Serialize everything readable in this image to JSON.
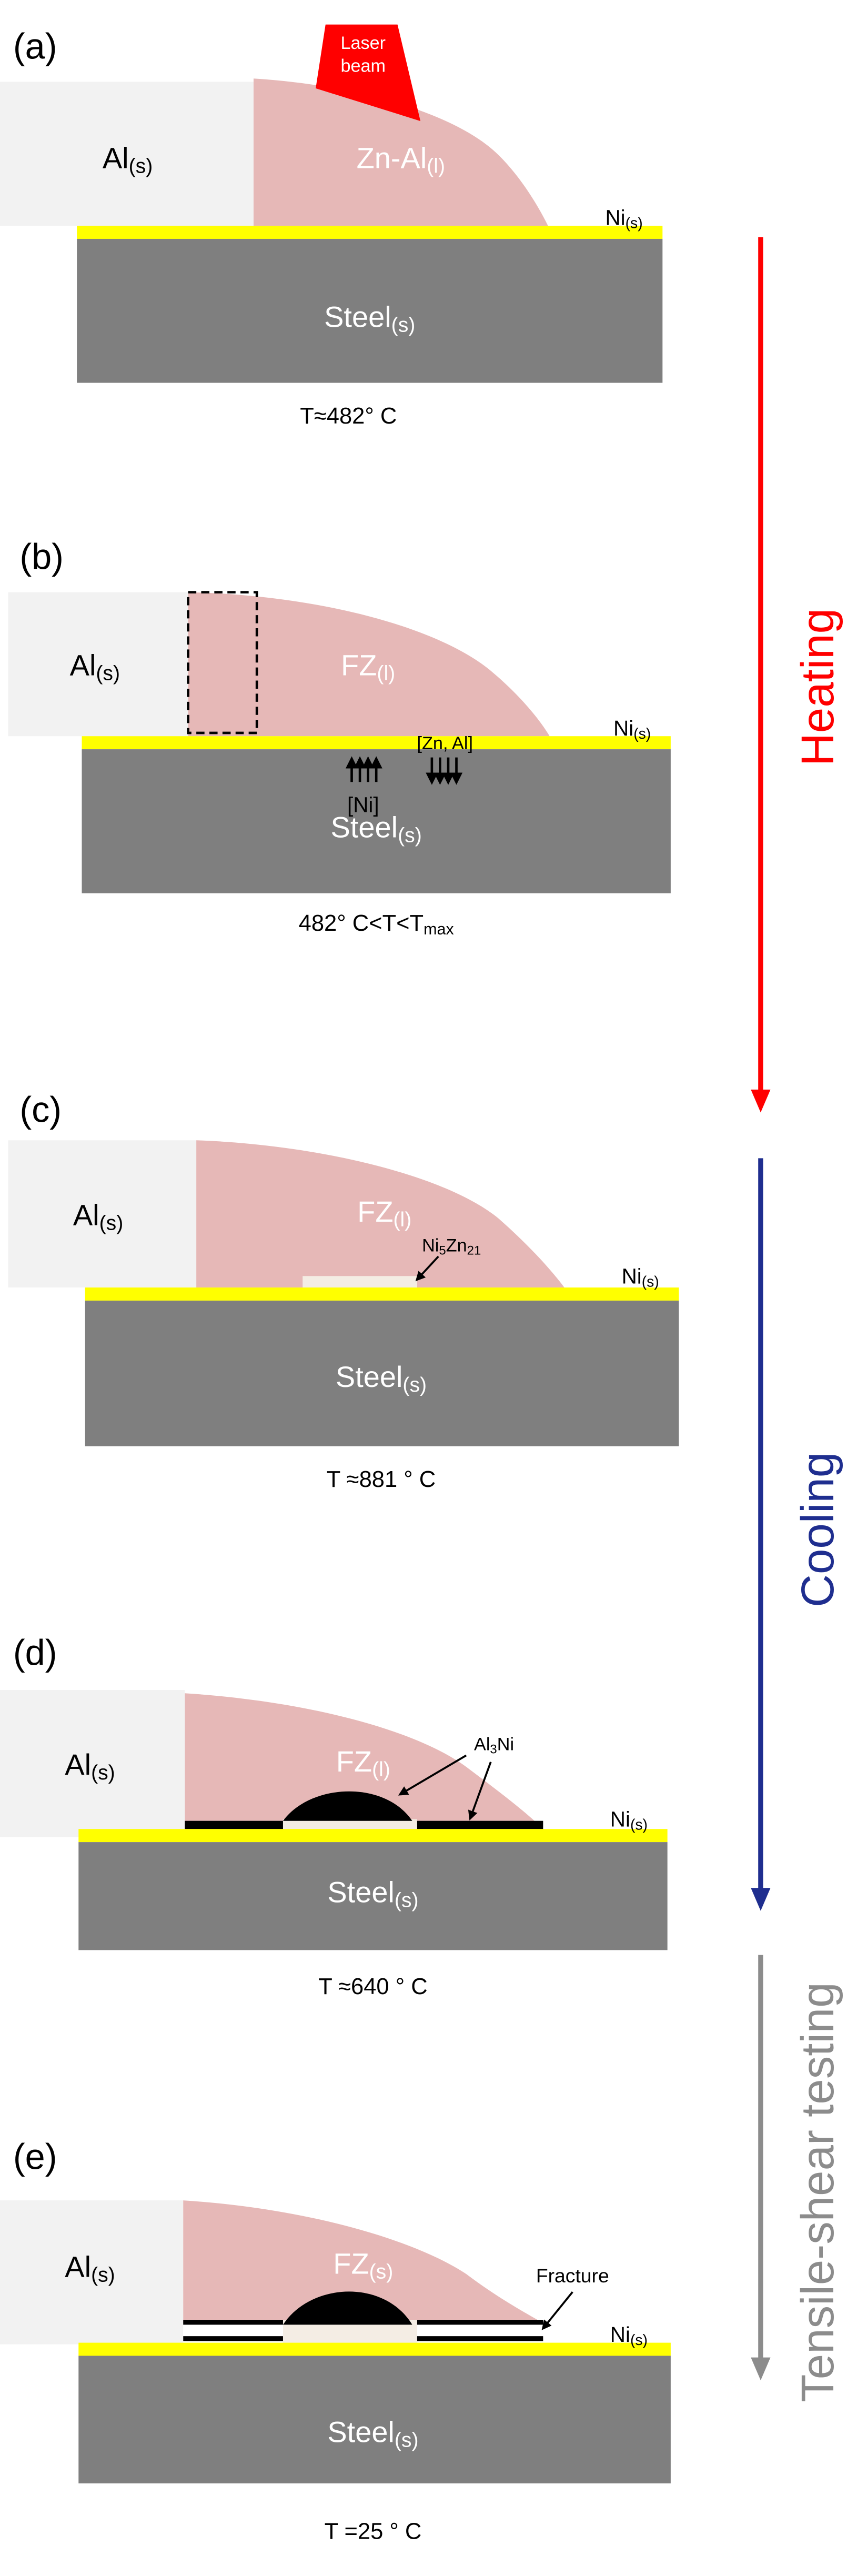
{
  "panels": [
    {
      "label": "(a)",
      "left": [
        {
          "text": "Al"
        },
        {
          "sub": "(s)"
        }
      ],
      "zone": [
        {
          "text": "Zn-Al"
        },
        {
          "sub": "(l)"
        }
      ],
      "laser": [
        "Laser",
        "beam"
      ],
      "nickel": [
        {
          "text": "Ni"
        },
        {
          "sub": "(s)"
        }
      ],
      "steel": [
        {
          "text": "Steel"
        },
        {
          "sub": "(s)"
        }
      ],
      "temperature": [
        {
          "text": "T≈482° C"
        }
      ]
    },
    {
      "label": "(b)",
      "left": [
        {
          "text": "Al"
        },
        {
          "sub": "(s)"
        }
      ],
      "zone": [
        {
          "text": "FZ"
        },
        {
          "sub": "(l)"
        }
      ],
      "annotations": [
        "[Zn, Al]",
        "[Ni]"
      ],
      "nickel": [
        {
          "text": "Ni"
        },
        {
          "sub": "(s)"
        }
      ],
      "steel": [
        {
          "text": "Steel"
        },
        {
          "sub": "(s)"
        }
      ],
      "temperature": [
        {
          "text": "482° C<T<T"
        },
        {
          "sub": "max"
        }
      ]
    },
    {
      "label": "(c)",
      "left": [
        {
          "text": "Al"
        },
        {
          "sub": "(s)"
        }
      ],
      "zone": [
        {
          "text": "FZ"
        },
        {
          "sub": "(l)"
        }
      ],
      "phase": [
        {
          "text": "Ni"
        },
        {
          "sub": "5"
        },
        {
          "text": "Zn"
        },
        {
          "sub": "21"
        }
      ],
      "nickel": [
        {
          "text": "Ni"
        },
        {
          "sub": "(s)"
        }
      ],
      "steel": [
        {
          "text": "Steel"
        },
        {
          "sub": "(s)"
        }
      ],
      "temperature": [
        {
          "text": "T ≈881 ° C"
        }
      ]
    },
    {
      "label": "(d)",
      "left": [
        {
          "text": "Al"
        },
        {
          "sub": "(s)"
        }
      ],
      "zone": [
        {
          "text": "FZ"
        },
        {
          "sub": "(l)"
        }
      ],
      "phase": [
        {
          "text": "Al"
        },
        {
          "sub": "3"
        },
        {
          "text": "Ni"
        }
      ],
      "nickel": [
        {
          "text": "Ni"
        },
        {
          "sub": "(s)"
        }
      ],
      "steel": [
        {
          "text": "Steel"
        },
        {
          "sub": "(s)"
        }
      ],
      "temperature": [
        {
          "text": "T ≈640 ° C"
        }
      ]
    },
    {
      "label": "(e)",
      "left": [
        {
          "text": "Al"
        },
        {
          "sub": "(s)"
        }
      ],
      "zone": [
        {
          "text": "FZ"
        },
        {
          "sub": "(s)"
        }
      ],
      "fracture": "Fracture",
      "nickel": [
        {
          "text": "Ni"
        },
        {
          "sub": "(s)"
        }
      ],
      "steel": [
        {
          "text": "Steel"
        },
        {
          "sub": "(s)"
        }
      ],
      "temperature": [
        {
          "text": "T =25 ° C"
        }
      ]
    }
  ],
  "process": [
    "Heating",
    "Cooling",
    "Tensile-shear testing"
  ]
}
